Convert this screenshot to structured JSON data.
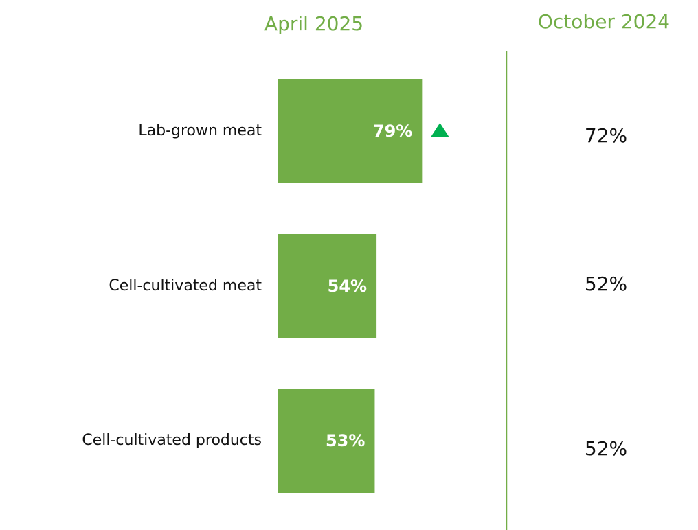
{
  "colors": {
    "bar": "#72ad47",
    "header": "#72ad47",
    "up_marker": "#00b050",
    "axis": "#6d6d6d",
    "divider": "#72ad47"
  },
  "chart_data": {
    "type": "bar",
    "orientation": "horizontal",
    "series_name": "April 2025",
    "comparison_name": "October 2024",
    "categories": [
      "Lab-grown meat",
      "Cell-cultivated meat",
      "Cell-cultivated products"
    ],
    "values": [
      79,
      54,
      53
    ],
    "value_labels": [
      "79%",
      "54%",
      "53%"
    ],
    "comparison_values": [
      72,
      52,
      52
    ],
    "comparison_labels": [
      "72%",
      "52%",
      "52%"
    ],
    "change_markers": [
      "up",
      "",
      ""
    ],
    "xlim": [
      0,
      100
    ],
    "grid": false
  }
}
